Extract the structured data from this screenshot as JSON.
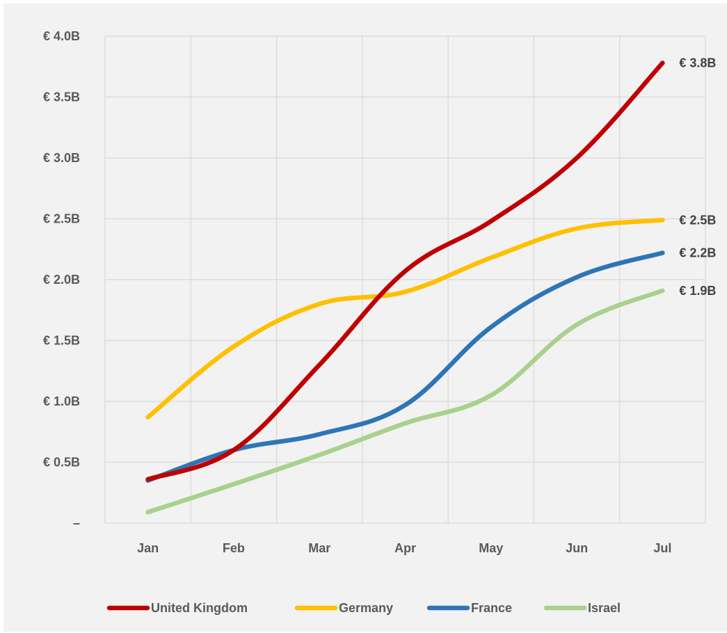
{
  "chart_data": {
    "type": "line",
    "categories": [
      "Jan",
      "Feb",
      "Mar",
      "Apr",
      "May",
      "Jun",
      "Jul"
    ],
    "ylim": [
      0,
      4.0
    ],
    "yticks": [
      0,
      0.5,
      1.0,
      1.5,
      2.0,
      2.5,
      3.0,
      3.5,
      4.0
    ],
    "ytick_labels": [
      "–",
      "€ 0.5B",
      "€ 1.0B",
      "€ 1.5B",
      "€ 2.0B",
      "€ 2.5B",
      "€ 3.0B",
      "€ 3.5B",
      "€ 4.0B"
    ],
    "grid": true,
    "legend_position": "bottom",
    "series": [
      {
        "name": "United Kingdom",
        "color": "#c00000",
        "values": [
          0.36,
          0.6,
          1.3,
          2.07,
          2.48,
          3.0,
          3.78
        ],
        "end_label": "€ 3.8B"
      },
      {
        "name": "Germany",
        "color": "#ffc000",
        "values": [
          0.87,
          1.45,
          1.8,
          1.9,
          2.18,
          2.42,
          2.49
        ],
        "end_label": "€ 2.5B"
      },
      {
        "name": "France",
        "color": "#2e75b6",
        "values": [
          0.35,
          0.6,
          0.73,
          0.97,
          1.61,
          2.02,
          2.22
        ],
        "end_label": "€ 2.2B"
      },
      {
        "name": "Israel",
        "color": "#a9d18e",
        "values": [
          0.09,
          0.32,
          0.56,
          0.82,
          1.05,
          1.63,
          1.91
        ],
        "end_label": "€ 1.9B"
      }
    ]
  }
}
